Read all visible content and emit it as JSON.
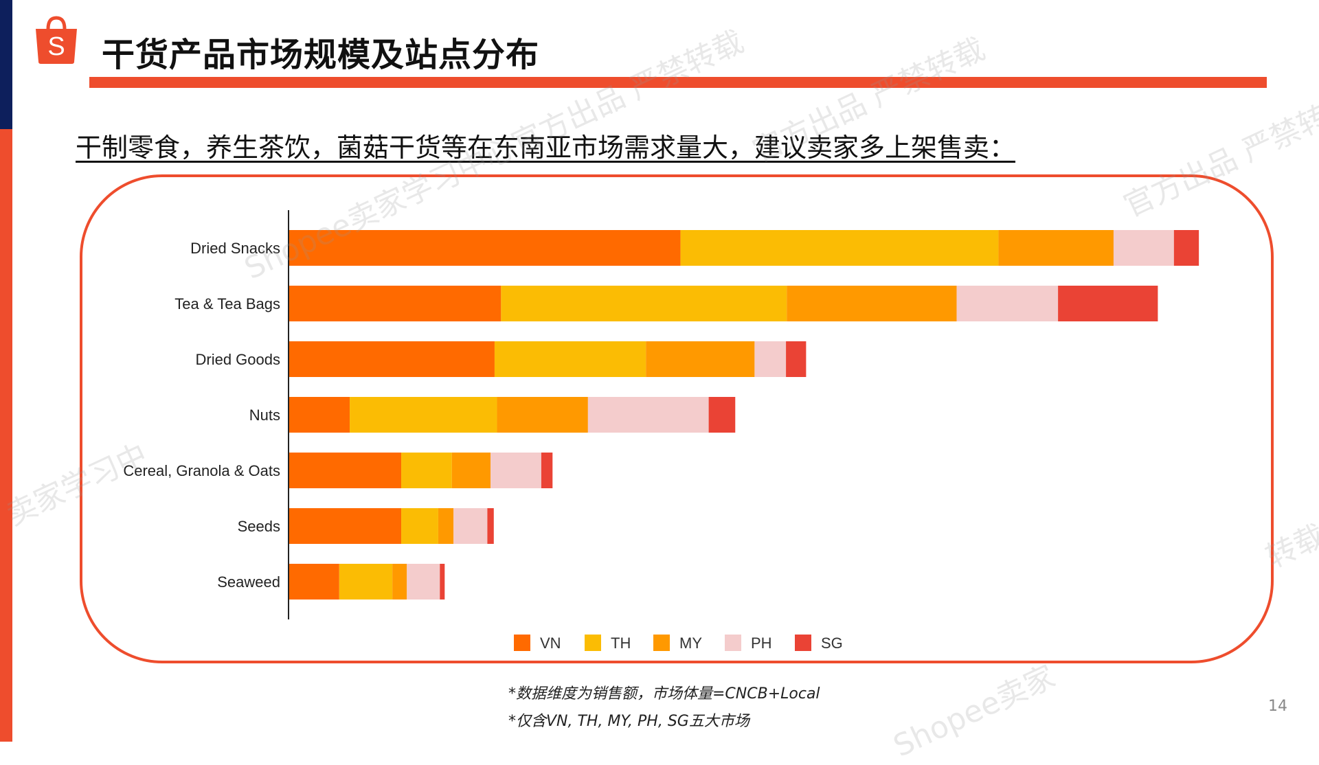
{
  "page": {
    "title": "干货产品市场规模及站点分布",
    "subtitle": "干制零食，养生茶饮，菌菇干货等在东南亚市场需求量大，建议卖家多上架售卖：",
    "footnotes": [
      "*数据维度为销售额，市场体量=CNCB+Local",
      "*仅含VN, TH, MY, PH, SG五大市场"
    ],
    "page_number": "14",
    "logo_letter": "S",
    "watermarks": [
      "Shopee卖家学习中心官方出品 严禁转载",
      "官方出品 严禁转载",
      "卖家学习中",
      "Shopee卖家",
      "转载"
    ]
  },
  "colors": {
    "brand": "#ee4d2d",
    "navy": "#0d1f5c"
  },
  "chart_data": {
    "type": "bar",
    "orientation": "horizontal",
    "stacked": true,
    "categories": [
      "Dried Snacks",
      "Tea & Tea Bags",
      "Dried Goods",
      "Nuts",
      "Cereal, Granola & Oats",
      "Seeds",
      "Seaweed"
    ],
    "series": [
      {
        "name": "VN",
        "color": "#ff6a00",
        "values": [
          487,
          264,
          256,
          76,
          140,
          140,
          63
        ]
      },
      {
        "name": "TH",
        "color": "#fbbc04",
        "values": [
          395,
          355,
          188,
          183,
          63,
          46,
          66
        ]
      },
      {
        "name": "MY",
        "color": "#ff9900",
        "values": [
          143,
          211,
          135,
          113,
          48,
          19,
          18
        ]
      },
      {
        "name": "PH",
        "color": "#f4cccc",
        "values": [
          75,
          126,
          39,
          150,
          63,
          42,
          41
        ]
      },
      {
        "name": "SG",
        "color": "#ea4335",
        "values": [
          31,
          124,
          25,
          33,
          14,
          8,
          6
        ]
      }
    ],
    "xlim": [
      0,
      1200
    ],
    "legend_position": "bottom",
    "grid": false
  }
}
